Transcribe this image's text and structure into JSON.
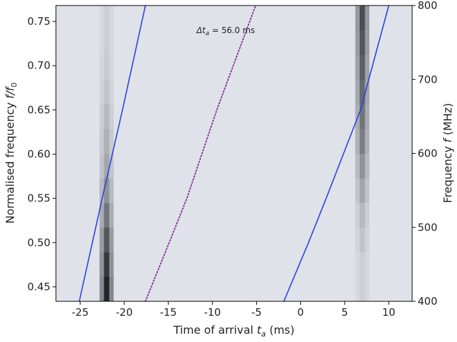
{
  "chart_data": {
    "type": "heatmap",
    "xlabel": {
      "pre": "Time of arrival ",
      "var": "t",
      "sub": "a",
      "post": " (ms)"
    },
    "ylabel": {
      "pre": "Normalised frequency ",
      "var": "f/f",
      "sub": "0"
    },
    "y2label": {
      "pre": "Frequency ",
      "var": "f",
      "post": " (MHz)"
    },
    "annotation": {
      "var": "Δt",
      "sub": "a",
      "post": " = 56.0 ms",
      "x": -11.8,
      "y": 0.737
    },
    "xlim": [
      -27.75,
      12.65
    ],
    "ylim": [
      0.4336,
      0.768
    ],
    "y2lim": [
      400,
      800
    ],
    "xticks": [
      -25,
      -20,
      -15,
      -10,
      -5,
      0,
      5,
      10
    ],
    "yticks": [
      0.45,
      {
        "value": 0.5,
        "label": "0.50"
      },
      0.55,
      {
        "value": 0.6,
        "label": "0.60"
      },
      0.65,
      {
        "value": 0.7,
        "label": "0.70"
      },
      0.75
    ],
    "y2ticks": [
      400,
      500,
      600,
      700,
      800
    ],
    "xbins": [
      -27.75,
      -22.8,
      -22.3,
      -21.7,
      -21.2,
      6.2,
      6.7,
      7.3,
      7.8,
      12.65
    ],
    "ybins": [
      0.4336,
      0.4615,
      0.4893,
      0.5172,
      0.5451,
      0.573,
      0.6008,
      0.6287,
      0.6566,
      0.6844,
      0.7123,
      0.7402,
      0.768
    ],
    "z": [
      [
        0,
        0.45,
        0.95,
        0.45,
        0,
        0.05,
        0.1,
        0.05,
        0
      ],
      [
        0,
        0.4,
        0.85,
        0.4,
        0,
        0.05,
        0.1,
        0.05,
        0
      ],
      [
        0,
        0.35,
        0.7,
        0.35,
        0,
        0.07,
        0.15,
        0.07,
        0
      ],
      [
        0,
        0.27,
        0.55,
        0.27,
        0,
        0.1,
        0.2,
        0.1,
        0
      ],
      [
        0,
        0.2,
        0.4,
        0.2,
        0,
        0.15,
        0.3,
        0.15,
        0
      ],
      [
        0,
        0.15,
        0.3,
        0.15,
        0,
        0.2,
        0.4,
        0.2,
        0
      ],
      [
        0,
        0.12,
        0.25,
        0.12,
        0,
        0.25,
        0.5,
        0.25,
        0
      ],
      [
        0,
        0.1,
        0.2,
        0.1,
        0,
        0.27,
        0.55,
        0.27,
        0
      ],
      [
        0,
        0.07,
        0.15,
        0.07,
        0,
        0.3,
        0.6,
        0.3,
        0
      ],
      [
        0,
        0.06,
        0.12,
        0.06,
        0,
        0.32,
        0.65,
        0.32,
        0
      ],
      [
        0,
        0.05,
        0.1,
        0.05,
        0,
        0.35,
        0.7,
        0.35,
        0
      ],
      [
        0,
        0.05,
        0.1,
        0.05,
        0,
        0.37,
        0.75,
        0.37,
        0
      ]
    ],
    "curves": [
      {
        "color": "#2b3fe0",
        "style": "solid",
        "x": [
          -25.1,
          -22.5,
          -20.2,
          -17.6
        ],
        "y": [
          0.4336,
          0.55,
          0.65,
          0.768
        ]
      },
      {
        "color": "#2b3fe0",
        "style": "solid",
        "x": [
          -1.9,
          0.9,
          2.9,
          6.8,
          10.0
        ],
        "y": [
          0.4336,
          0.5,
          0.55,
          0.65,
          0.768
        ]
      },
      {
        "color": "#8a3aa0",
        "style": "dotted",
        "x": [
          -17.6,
          -14.9,
          -12.9,
          -9.5,
          -5.1
        ],
        "y": [
          0.4336,
          0.5,
          0.55,
          0.65,
          0.768
        ]
      }
    ]
  }
}
